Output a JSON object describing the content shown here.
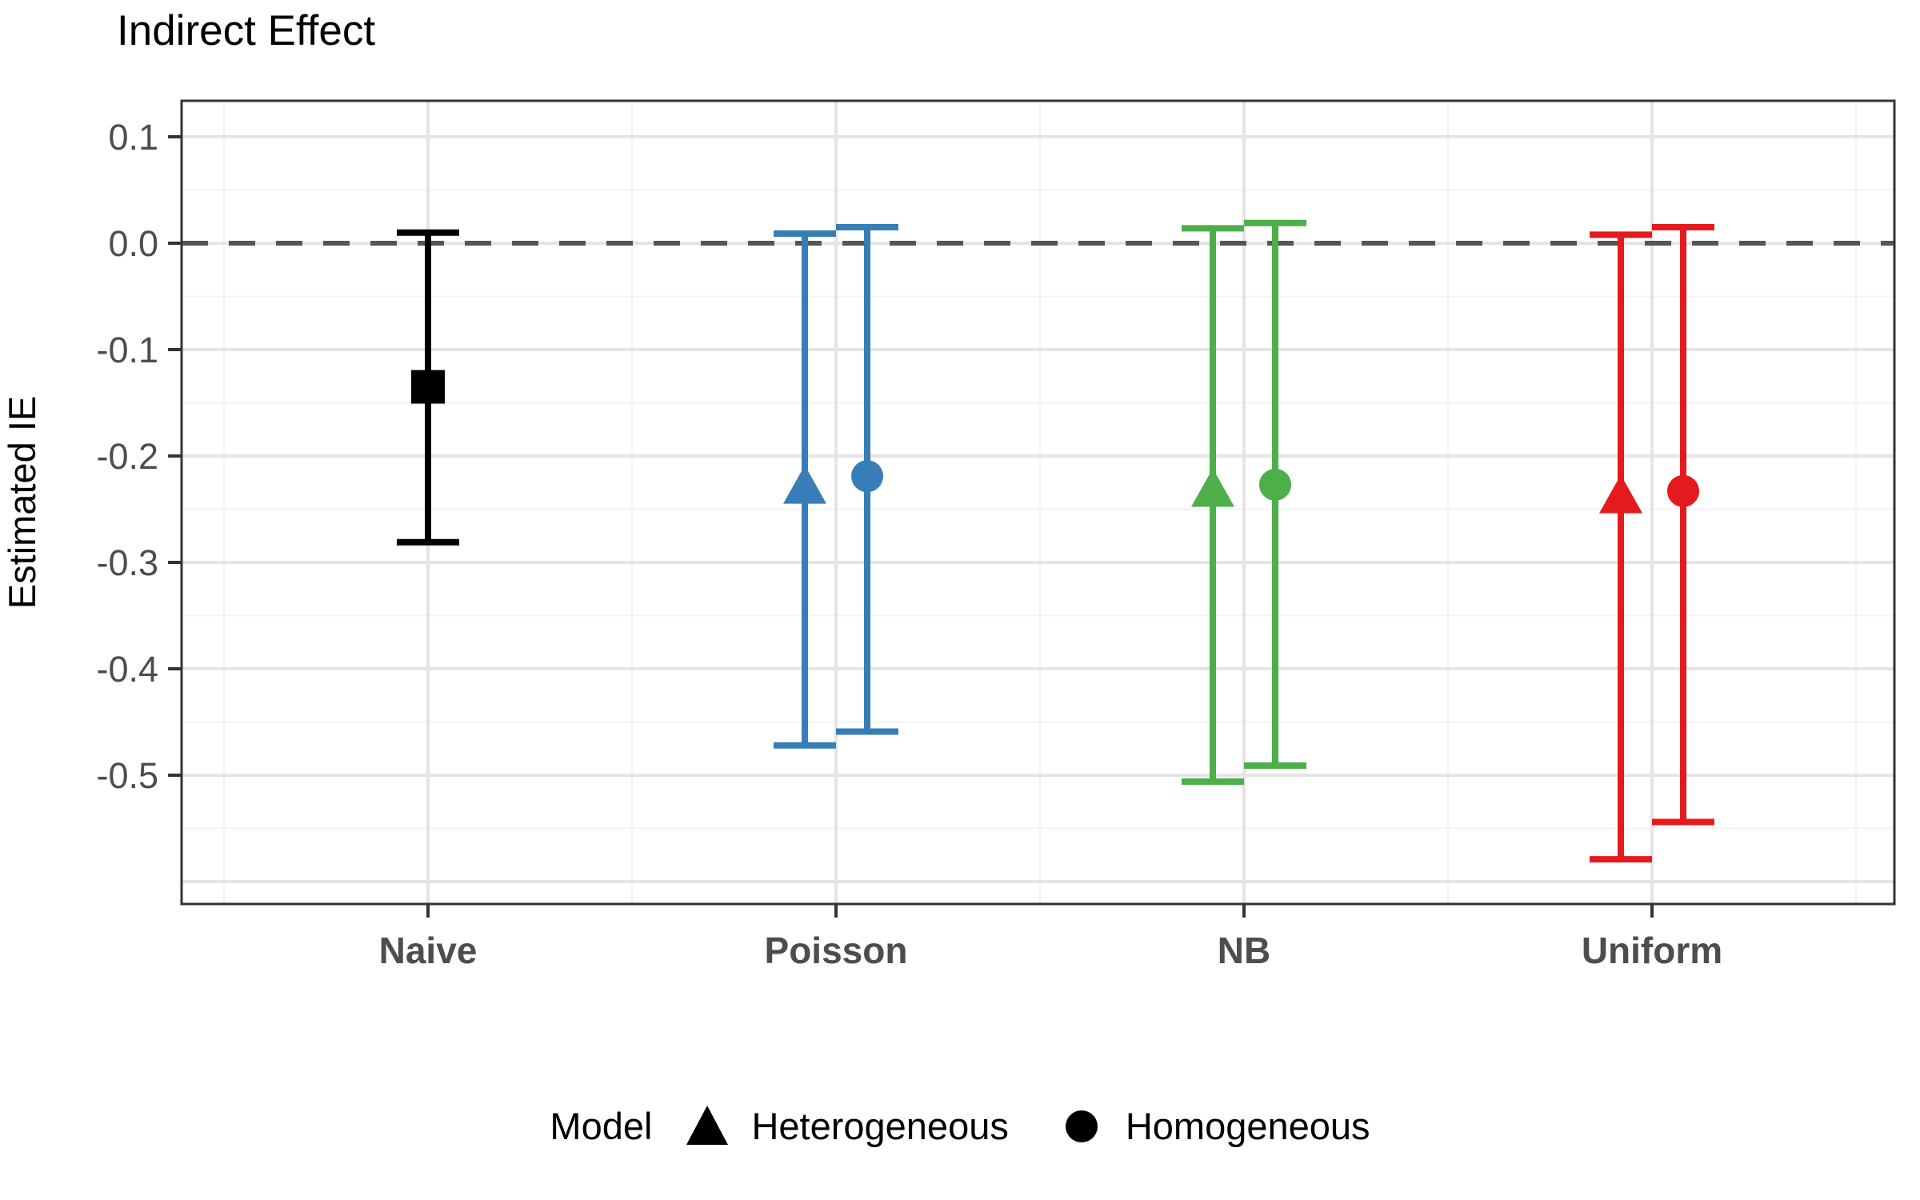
{
  "chart_data": {
    "type": "scatter",
    "subtype": "point-estimates-with-error-bars",
    "title": "Indirect Effect",
    "xlabel": "",
    "ylabel": "Estimated IE",
    "categories": [
      "Naive",
      "Poisson",
      "NB",
      "Uniform"
    ],
    "y_ticks": [
      0.1,
      0.0,
      -0.1,
      -0.2,
      -0.3,
      -0.4,
      -0.5
    ],
    "y_tick_labels": [
      "0.1",
      "0.0",
      "-0.1",
      "-0.2",
      "-0.3",
      "-0.4",
      "-0.5"
    ],
    "ylim": [
      -0.621,
      0.134
    ],
    "grid": "major+minor",
    "reference_line": {
      "y": 0.0,
      "style": "dashed",
      "color": "#555555"
    },
    "legend": {
      "title": "Model",
      "position": "bottom",
      "items": [
        {
          "label": "Heterogeneous",
          "shape": "triangle",
          "color": "#000000"
        },
        {
          "label": "Homogeneous",
          "shape": "circle",
          "color": "#000000"
        }
      ]
    },
    "group_colors": {
      "Naive": "#000000",
      "Poisson": "#377EB8",
      "NB": "#4DAF4A",
      "Uniform": "#E41A1C"
    },
    "points": [
      {
        "category": "Naive",
        "model": "Naive",
        "shape": "square",
        "color": "#000000",
        "estimate": -0.135,
        "ci_low": -0.281,
        "ci_high": 0.01
      },
      {
        "category": "Poisson",
        "model": "Heterogeneous",
        "shape": "triangle",
        "color": "#377EB8",
        "estimate": -0.229,
        "ci_low": -0.472,
        "ci_high": 0.009
      },
      {
        "category": "Poisson",
        "model": "Homogeneous",
        "shape": "circle",
        "color": "#377EB8",
        "estimate": -0.219,
        "ci_low": -0.459,
        "ci_high": 0.015
      },
      {
        "category": "NB",
        "model": "Heterogeneous",
        "shape": "triangle",
        "color": "#4DAF4A",
        "estimate": -0.232,
        "ci_low": -0.506,
        "ci_high": 0.014
      },
      {
        "category": "NB",
        "model": "Homogeneous",
        "shape": "circle",
        "color": "#4DAF4A",
        "estimate": -0.227,
        "ci_low": -0.491,
        "ci_high": 0.019
      },
      {
        "category": "Uniform",
        "model": "Heterogeneous",
        "shape": "triangle",
        "color": "#E41A1C",
        "estimate": -0.238,
        "ci_low": -0.579,
        "ci_high": 0.008
      },
      {
        "category": "Uniform",
        "model": "Homogeneous",
        "shape": "circle",
        "color": "#E41A1C",
        "estimate": -0.233,
        "ci_low": -0.544,
        "ci_high": 0.015
      }
    ]
  }
}
